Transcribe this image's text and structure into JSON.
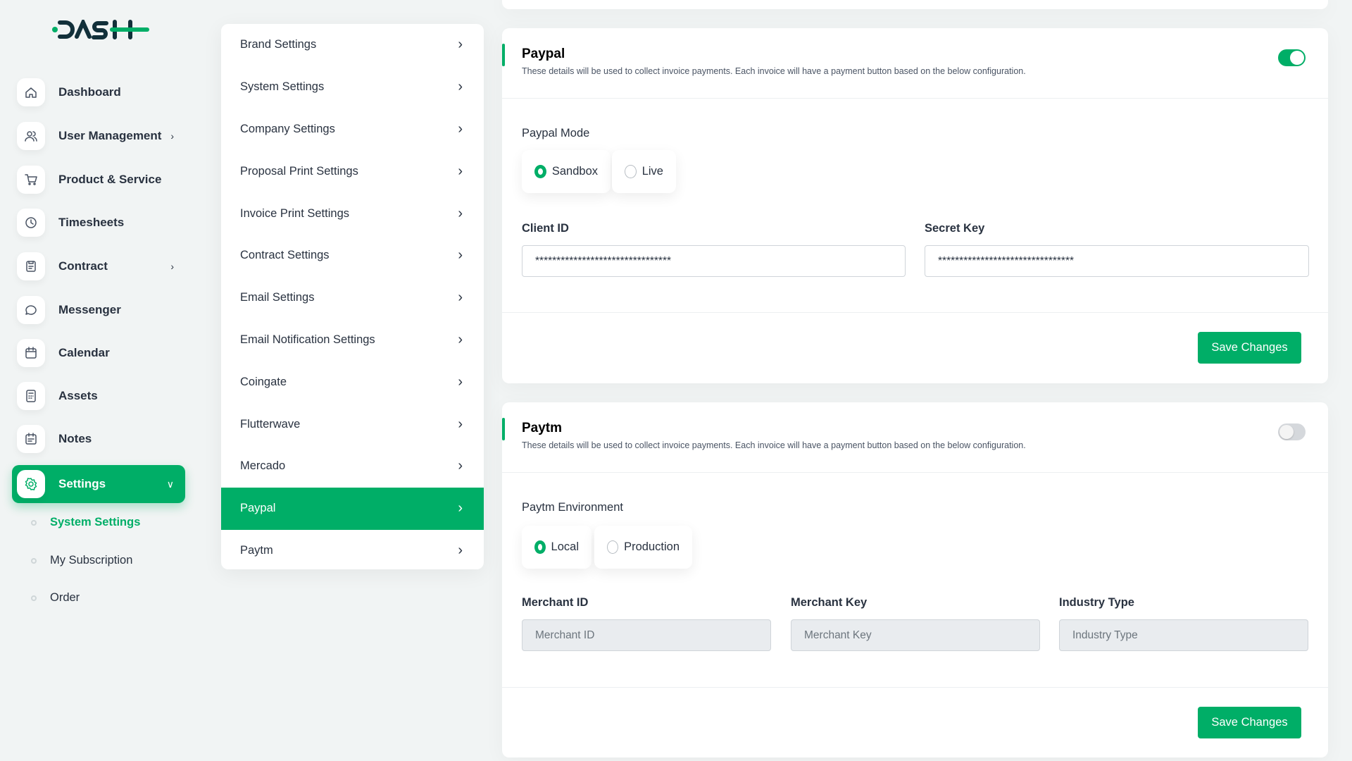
{
  "logo": "DASH",
  "colors": {
    "accent": "#00ae67"
  },
  "sidebar": {
    "items": [
      {
        "label": "Dashboard",
        "icon": "home-icon"
      },
      {
        "label": "User Management",
        "icon": "users-icon",
        "has_children": true
      },
      {
        "label": "Product & Service",
        "icon": "cart-icon"
      },
      {
        "label": "Timesheets",
        "icon": "clock-icon"
      },
      {
        "label": "Contract",
        "icon": "contract-icon",
        "has_children": true
      },
      {
        "label": "Messenger",
        "icon": "chat-icon"
      },
      {
        "label": "Calendar",
        "icon": "calendar-icon"
      },
      {
        "label": "Assets",
        "icon": "calculator-icon"
      },
      {
        "label": "Notes",
        "icon": "notes-icon"
      },
      {
        "label": "Settings",
        "icon": "gear-icon",
        "active": true
      }
    ],
    "sub_items": [
      {
        "label": "System Settings",
        "active": true
      },
      {
        "label": "My Subscription"
      },
      {
        "label": "Order"
      }
    ]
  },
  "settings_menu": [
    "Brand Settings",
    "System Settings",
    "Company Settings",
    "Proposal Print Settings",
    "Invoice Print Settings",
    "Contract Settings",
    "Email Settings",
    "Email Notification Settings",
    "Coingate",
    "Flutterwave",
    "Mercado",
    "Paypal",
    "Paytm"
  ],
  "settings_menu_active": "Paypal",
  "paypal": {
    "title": "Paypal",
    "description": "These details will be used to collect invoice payments. Each invoice will have a payment button based on the below configuration.",
    "enabled": true,
    "mode_label": "Paypal Mode",
    "modes": [
      "Sandbox",
      "Live"
    ],
    "selected_mode": "Sandbox",
    "client_id_label": "Client ID",
    "client_id": "********************************",
    "secret_key_label": "Secret Key",
    "secret_key": "********************************",
    "save": "Save Changes"
  },
  "paytm": {
    "title": "Paytm",
    "description": "These details will be used to collect invoice payments. Each invoice will have a payment button based on the below configuration.",
    "enabled": false,
    "env_label": "Paytm Environment",
    "envs": [
      "Local",
      "Production"
    ],
    "selected_env": "Local",
    "merchant_id_label": "Merchant ID",
    "merchant_id_placeholder": "Merchant ID",
    "merchant_key_label": "Merchant Key",
    "merchant_key_placeholder": "Merchant Key",
    "industry_type_label": "Industry Type",
    "industry_type_placeholder": "Industry Type",
    "save": "Save Changes"
  }
}
